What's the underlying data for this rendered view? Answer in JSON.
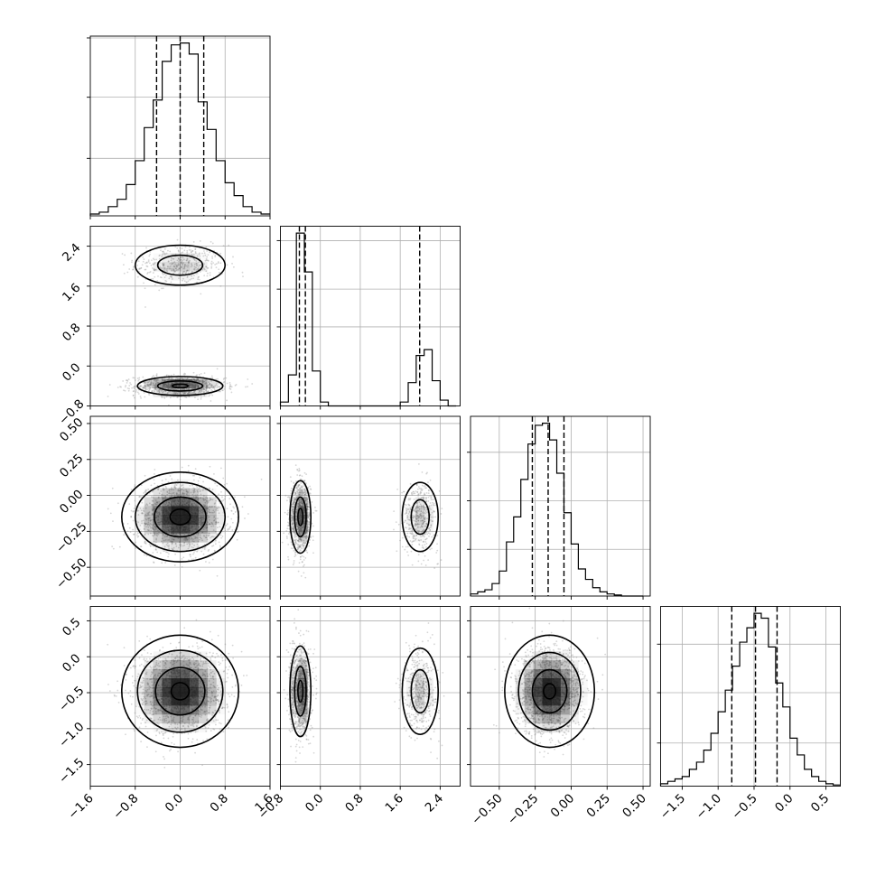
{
  "chart_data": {
    "type": "corner",
    "parameters": [
      {
        "range": [
          -1.6,
          1.6
        ],
        "ticks": [
          -1.6,
          -0.8,
          0.0,
          0.8,
          1.6
        ],
        "tick_labels": [
          "−1.6",
          "−0.8",
          "0.0",
          "0.8",
          "1.6"
        ],
        "quantiles": [
          -0.42,
          0.0,
          0.42
        ],
        "hist": {
          "edges": [
            -1.6,
            -1.44,
            -1.28,
            -1.12,
            -0.96,
            -0.8,
            -0.64,
            -0.48,
            -0.32,
            -0.16,
            0.0,
            0.16,
            0.32,
            0.48,
            0.64,
            0.8,
            0.96,
            1.12,
            1.28,
            1.44,
            1.6
          ],
          "counts": [
            0.01,
            0.02,
            0.05,
            0.09,
            0.17,
            0.3,
            0.48,
            0.63,
            0.84,
            0.93,
            0.94,
            0.88,
            0.62,
            0.47,
            0.3,
            0.18,
            0.11,
            0.05,
            0.02,
            0.01
          ]
        },
        "hist_grid_fractions": [
          0.32,
          0.66,
          0.99
        ]
      },
      {
        "range": [
          -0.8,
          2.8
        ],
        "ticks": [
          -0.8,
          0.0,
          0.8,
          1.6,
          2.4
        ],
        "tick_labels": [
          "−0.8",
          "0.0",
          "0.8",
          "1.6",
          "2.4"
        ],
        "quantiles": [
          -0.42,
          -0.3,
          1.99
        ],
        "hist": {
          "edges": [
            -0.8,
            -0.64,
            -0.48,
            -0.32,
            -0.16,
            0.0,
            0.16,
            0.32,
            0.48,
            0.64,
            0.8,
            0.96,
            1.12,
            1.28,
            1.44,
            1.6,
            1.76,
            1.92,
            2.08,
            2.24,
            2.4,
            2.56,
            2.72
          ],
          "counts": [
            0.02,
            0.16,
            0.89,
            0.69,
            0.18,
            0.02,
            0.0,
            0.0,
            0.0,
            0.0,
            0.0,
            0.0,
            0.0,
            0.0,
            0.0,
            0.02,
            0.12,
            0.26,
            0.29,
            0.13,
            0.03,
            0.0
          ]
        },
        "hist_grid_fractions": [
          0.44,
          0.65,
          0.92
        ]
      },
      {
        "range": [
          -0.7,
          0.55
        ],
        "ticks": [
          -0.5,
          -0.25,
          0.0,
          0.25,
          0.5
        ],
        "tick_labels": [
          "−0.50",
          "−0.25",
          "0.00",
          "0.25",
          "0.50"
        ],
        "quantiles": [
          -0.27,
          -0.16,
          -0.05
        ],
        "hist": {
          "edges": [
            -0.7,
            -0.65,
            -0.6,
            -0.55,
            -0.5,
            -0.45,
            -0.4,
            -0.35,
            -0.3,
            -0.25,
            -0.2,
            -0.15,
            -0.1,
            -0.05,
            0.0,
            0.05,
            0.1,
            0.15,
            0.2,
            0.25,
            0.3,
            0.35,
            0.4,
            0.45,
            0.5
          ],
          "counts": [
            0.01,
            0.02,
            0.03,
            0.06,
            0.12,
            0.26,
            0.38,
            0.56,
            0.73,
            0.82,
            0.83,
            0.75,
            0.59,
            0.4,
            0.25,
            0.13,
            0.08,
            0.04,
            0.02,
            0.01,
            0.005,
            0.0,
            0.0,
            0.0
          ]
        },
        "hist_grid_fractions": [
          0.26,
          0.53,
          0.8
        ]
      },
      {
        "range": [
          -1.8,
          0.7
        ],
        "ticks": [
          -1.5,
          -1.0,
          -0.5,
          0.0,
          0.5
        ],
        "tick_labels": [
          "−1.5",
          "−1.0",
          "−0.5",
          "0.0",
          "0.5"
        ],
        "quantiles": [
          -0.81,
          -0.48,
          -0.18
        ],
        "hist": {
          "edges": [
            -1.8,
            -1.7,
            -1.6,
            -1.5,
            -1.4,
            -1.3,
            -1.2,
            -1.1,
            -1.0,
            -0.9,
            -0.8,
            -0.7,
            -0.6,
            -0.5,
            -0.4,
            -0.3,
            -0.2,
            -0.1,
            0.0,
            0.1,
            0.2,
            0.3,
            0.4,
            0.5,
            0.6,
            0.7
          ],
          "counts": [
            0.01,
            0.02,
            0.03,
            0.04,
            0.07,
            0.1,
            0.15,
            0.22,
            0.31,
            0.4,
            0.5,
            0.6,
            0.66,
            0.72,
            0.7,
            0.58,
            0.43,
            0.33,
            0.2,
            0.13,
            0.07,
            0.04,
            0.02,
            0.01,
            0.005
          ]
        },
        "hist_grid_fractions": [
          0.24,
          0.52,
          0.79
        ]
      }
    ],
    "pairs": [
      {
        "x": 0,
        "y": 1,
        "clusters": [
          {
            "cx": 0.0,
            "cy": 2.02,
            "sx": 0.4,
            "sy": 0.2,
            "weight": 0.3,
            "contours": [
              1.0,
              2.0
            ]
          },
          {
            "cx": 0.0,
            "cy": -0.4,
            "sx": 0.4,
            "sy": 0.1,
            "weight": 0.7,
            "contours": [
              0.35,
              1.0,
              1.9
            ]
          }
        ]
      },
      {
        "x": 0,
        "y": 2,
        "clusters": [
          {
            "cx": 0.0,
            "cy": -0.15,
            "sx": 0.4,
            "sy": 0.12,
            "weight": 1.0,
            "contours": [
              0.45,
              1.15,
              2.0,
              2.6
            ]
          }
        ]
      },
      {
        "x": 1,
        "y": 2,
        "clusters": [
          {
            "cx": -0.4,
            "cy": -0.15,
            "sx": 0.1,
            "sy": 0.12,
            "weight": 0.7,
            "contours": [
              0.5,
              1.15,
              2.1
            ]
          },
          {
            "cx": 2.0,
            "cy": -0.15,
            "sx": 0.18,
            "sy": 0.12,
            "weight": 0.3,
            "contours": [
              1.0,
              2.0
            ]
          }
        ]
      },
      {
        "x": 0,
        "y": 3,
        "clusters": [
          {
            "cx": 0.0,
            "cy": -0.48,
            "sx": 0.4,
            "sy": 0.3,
            "weight": 1.0,
            "contours": [
              0.4,
              1.1,
              1.9,
              2.6
            ]
          }
        ]
      },
      {
        "x": 1,
        "y": 3,
        "clusters": [
          {
            "cx": -0.4,
            "cy": -0.48,
            "sx": 0.1,
            "sy": 0.3,
            "weight": 0.7,
            "contours": [
              0.5,
              1.15,
              2.1
            ]
          },
          {
            "cx": 2.0,
            "cy": -0.48,
            "sx": 0.18,
            "sy": 0.3,
            "weight": 0.3,
            "contours": [
              1.0,
              2.0
            ]
          }
        ]
      },
      {
        "x": 2,
        "y": 3,
        "clusters": [
          {
            "cx": -0.15,
            "cy": -0.48,
            "sx": 0.12,
            "sy": 0.3,
            "weight": 1.0,
            "contours": [
              0.35,
              1.0,
              1.8,
              2.6
            ]
          }
        ]
      }
    ],
    "grid": true,
    "colors": {
      "line": "#000000",
      "grid": "#b0b0b0",
      "density_dark": "#111111",
      "scatter": "#8a8a8a"
    }
  }
}
